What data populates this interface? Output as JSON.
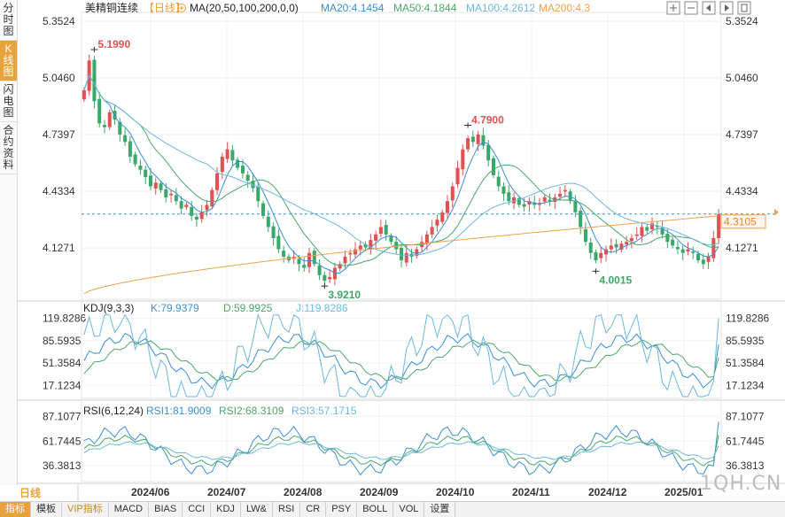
{
  "left_tabs": [
    "分时图",
    "K线图",
    "闪电图",
    "合约资料"
  ],
  "left_tab_active": 1,
  "header": {
    "symbol": "美精铜连续",
    "period": "【日线】",
    "ma_label": "MA(20,50,100,200,0,0)",
    "ma_values": [
      {
        "name": "MA20",
        "text": "MA20:4.1454",
        "color": "#3a8fd6"
      },
      {
        "name": "MA50",
        "text": "MA50:4.1844",
        "color": "#4aa868"
      },
      {
        "name": "MA100",
        "text": "MA100:4.2612",
        "color": "#6cb8e0"
      },
      {
        "name": "MA200",
        "text": "MA200:4.3",
        "color": "#f0a050"
      }
    ]
  },
  "toolbar_icons": [
    "zoom-in-icon",
    "zoom-out-icon",
    "move-left-icon",
    "move-right-icon",
    "fullscreen-icon"
  ],
  "price_axis": {
    "ticks": [
      5.3524,
      5.046,
      4.7397,
      4.4334,
      4.1271
    ],
    "labels": [
      "5.3524",
      "5.0460",
      "4.7397",
      "4.4334",
      "4.1271"
    ]
  },
  "current_price": {
    "value": 4.3105,
    "label": "4.3105"
  },
  "annotations": [
    {
      "label": "5.1990",
      "value": 5.199,
      "color": "#e05252"
    },
    {
      "label": "4.7900",
      "value": 4.79,
      "color": "#e05252"
    },
    {
      "label": "3.9210",
      "value": 3.921,
      "color": "#3aa86a"
    },
    {
      "label": "4.0015",
      "value": 4.0015,
      "color": "#3aa86a"
    }
  ],
  "kdj": {
    "label": "KDJ(9,3,3)",
    "values": [
      {
        "text": "K:79.9379",
        "color": "#3a8fd6"
      },
      {
        "text": "D:59.9925",
        "color": "#4aa868"
      },
      {
        "text": "J:119.8286",
        "color": "#6cb8e0"
      }
    ],
    "ticks": [
      119.8286,
      85.5935,
      51.3584,
      17.1234
    ],
    "tick_labels": [
      "119.8286",
      "85.5935",
      "51.3584",
      "17.1234"
    ]
  },
  "rsi": {
    "label": "RSI(6,12,24)",
    "values": [
      {
        "text": "RSI1:81.9009",
        "color": "#3a8fd6"
      },
      {
        "text": "RSI2:68.3109",
        "color": "#4aa868"
      },
      {
        "text": "RSI3:57.1715",
        "color": "#6cb8e0"
      }
    ],
    "ticks": [
      87.1077,
      61.7445,
      36.3813
    ],
    "tick_labels": [
      "87.1077",
      "61.7445",
      "36.3813"
    ]
  },
  "x_axis": {
    "labels": [
      "2024/06",
      "2024/07",
      "2024/08",
      "2024/09",
      "2024/10",
      "2024/11",
      "2024/12",
      "2025/01"
    ]
  },
  "period_label": "日线",
  "bottom_tabs": [
    "指标",
    "模板",
    "VIP指标",
    "MACD",
    "BIAS",
    "CCI",
    "KDJ",
    "LW&",
    "RSI",
    "CR",
    "PSY",
    "BOLL",
    "VOL",
    "设置"
  ],
  "bottom_tab_active": 0,
  "watermark": "1QH.CN",
  "colors": {
    "up": "#e05252",
    "down": "#3aa86a",
    "grid": "#e6e6e6",
    "accent": "#e9a23b"
  },
  "chart_data": {
    "type": "candlestick",
    "title": "美精铜连续【日线】",
    "x_labels": [
      "2024/06",
      "2024/07",
      "2024/08",
      "2024/09",
      "2024/10",
      "2024/11",
      "2024/12",
      "2025/01"
    ],
    "price_range": [
      3.85,
      5.4
    ],
    "close_series": [
      4.98,
      5.14,
      4.92,
      4.8,
      4.78,
      4.86,
      4.82,
      4.74,
      4.7,
      4.62,
      4.58,
      4.55,
      4.51,
      4.46,
      4.48,
      4.44,
      4.4,
      4.42,
      4.38,
      4.34,
      4.36,
      4.3,
      4.28,
      4.32,
      4.36,
      4.44,
      4.53,
      4.62,
      4.66,
      4.6,
      4.56,
      4.53,
      4.49,
      4.45,
      4.38,
      4.3,
      4.24,
      4.18,
      4.12,
      4.08,
      4.06,
      4.08,
      4.04,
      4.02,
      4.1,
      4.04,
      3.98,
      3.95,
      3.97,
      4.02,
      4.04,
      4.08,
      4.1,
      4.12,
      4.14,
      4.13,
      4.17,
      4.2,
      4.24,
      4.2,
      4.16,
      4.12,
      4.06,
      4.1,
      4.08,
      4.12,
      4.16,
      4.2,
      4.24,
      4.28,
      4.32,
      4.38,
      4.46,
      4.56,
      4.66,
      4.72,
      4.7,
      4.74,
      4.68,
      4.6,
      4.52,
      4.46,
      4.42,
      4.38,
      4.4,
      4.36,
      4.35,
      4.38,
      4.36,
      4.37,
      4.4,
      4.38,
      4.4,
      4.42,
      4.44,
      4.38,
      4.32,
      4.24,
      4.16,
      4.1,
      4.06,
      4.1,
      4.12,
      4.14,
      4.13,
      4.15,
      4.16,
      4.18,
      4.2,
      4.24,
      4.22,
      4.26,
      4.24,
      4.2,
      4.16,
      4.14,
      4.12,
      4.1,
      4.12,
      4.1,
      4.06,
      4.04,
      4.08,
      4.18,
      4.31
    ],
    "kdj": {
      "K_last": 79.9379,
      "D_last": 59.9925,
      "J_last": 119.8286,
      "range": [
        0,
        130
      ]
    },
    "rsi": {
      "RSI1_last": 81.9009,
      "RSI2_last": 68.3109,
      "RSI3_last": 57.1715,
      "range": [
        20,
        95
      ]
    },
    "ma": {
      "MA20": 4.1454,
      "MA50": 4.1844,
      "MA100": 4.2612,
      "MA200": 4.3
    }
  }
}
